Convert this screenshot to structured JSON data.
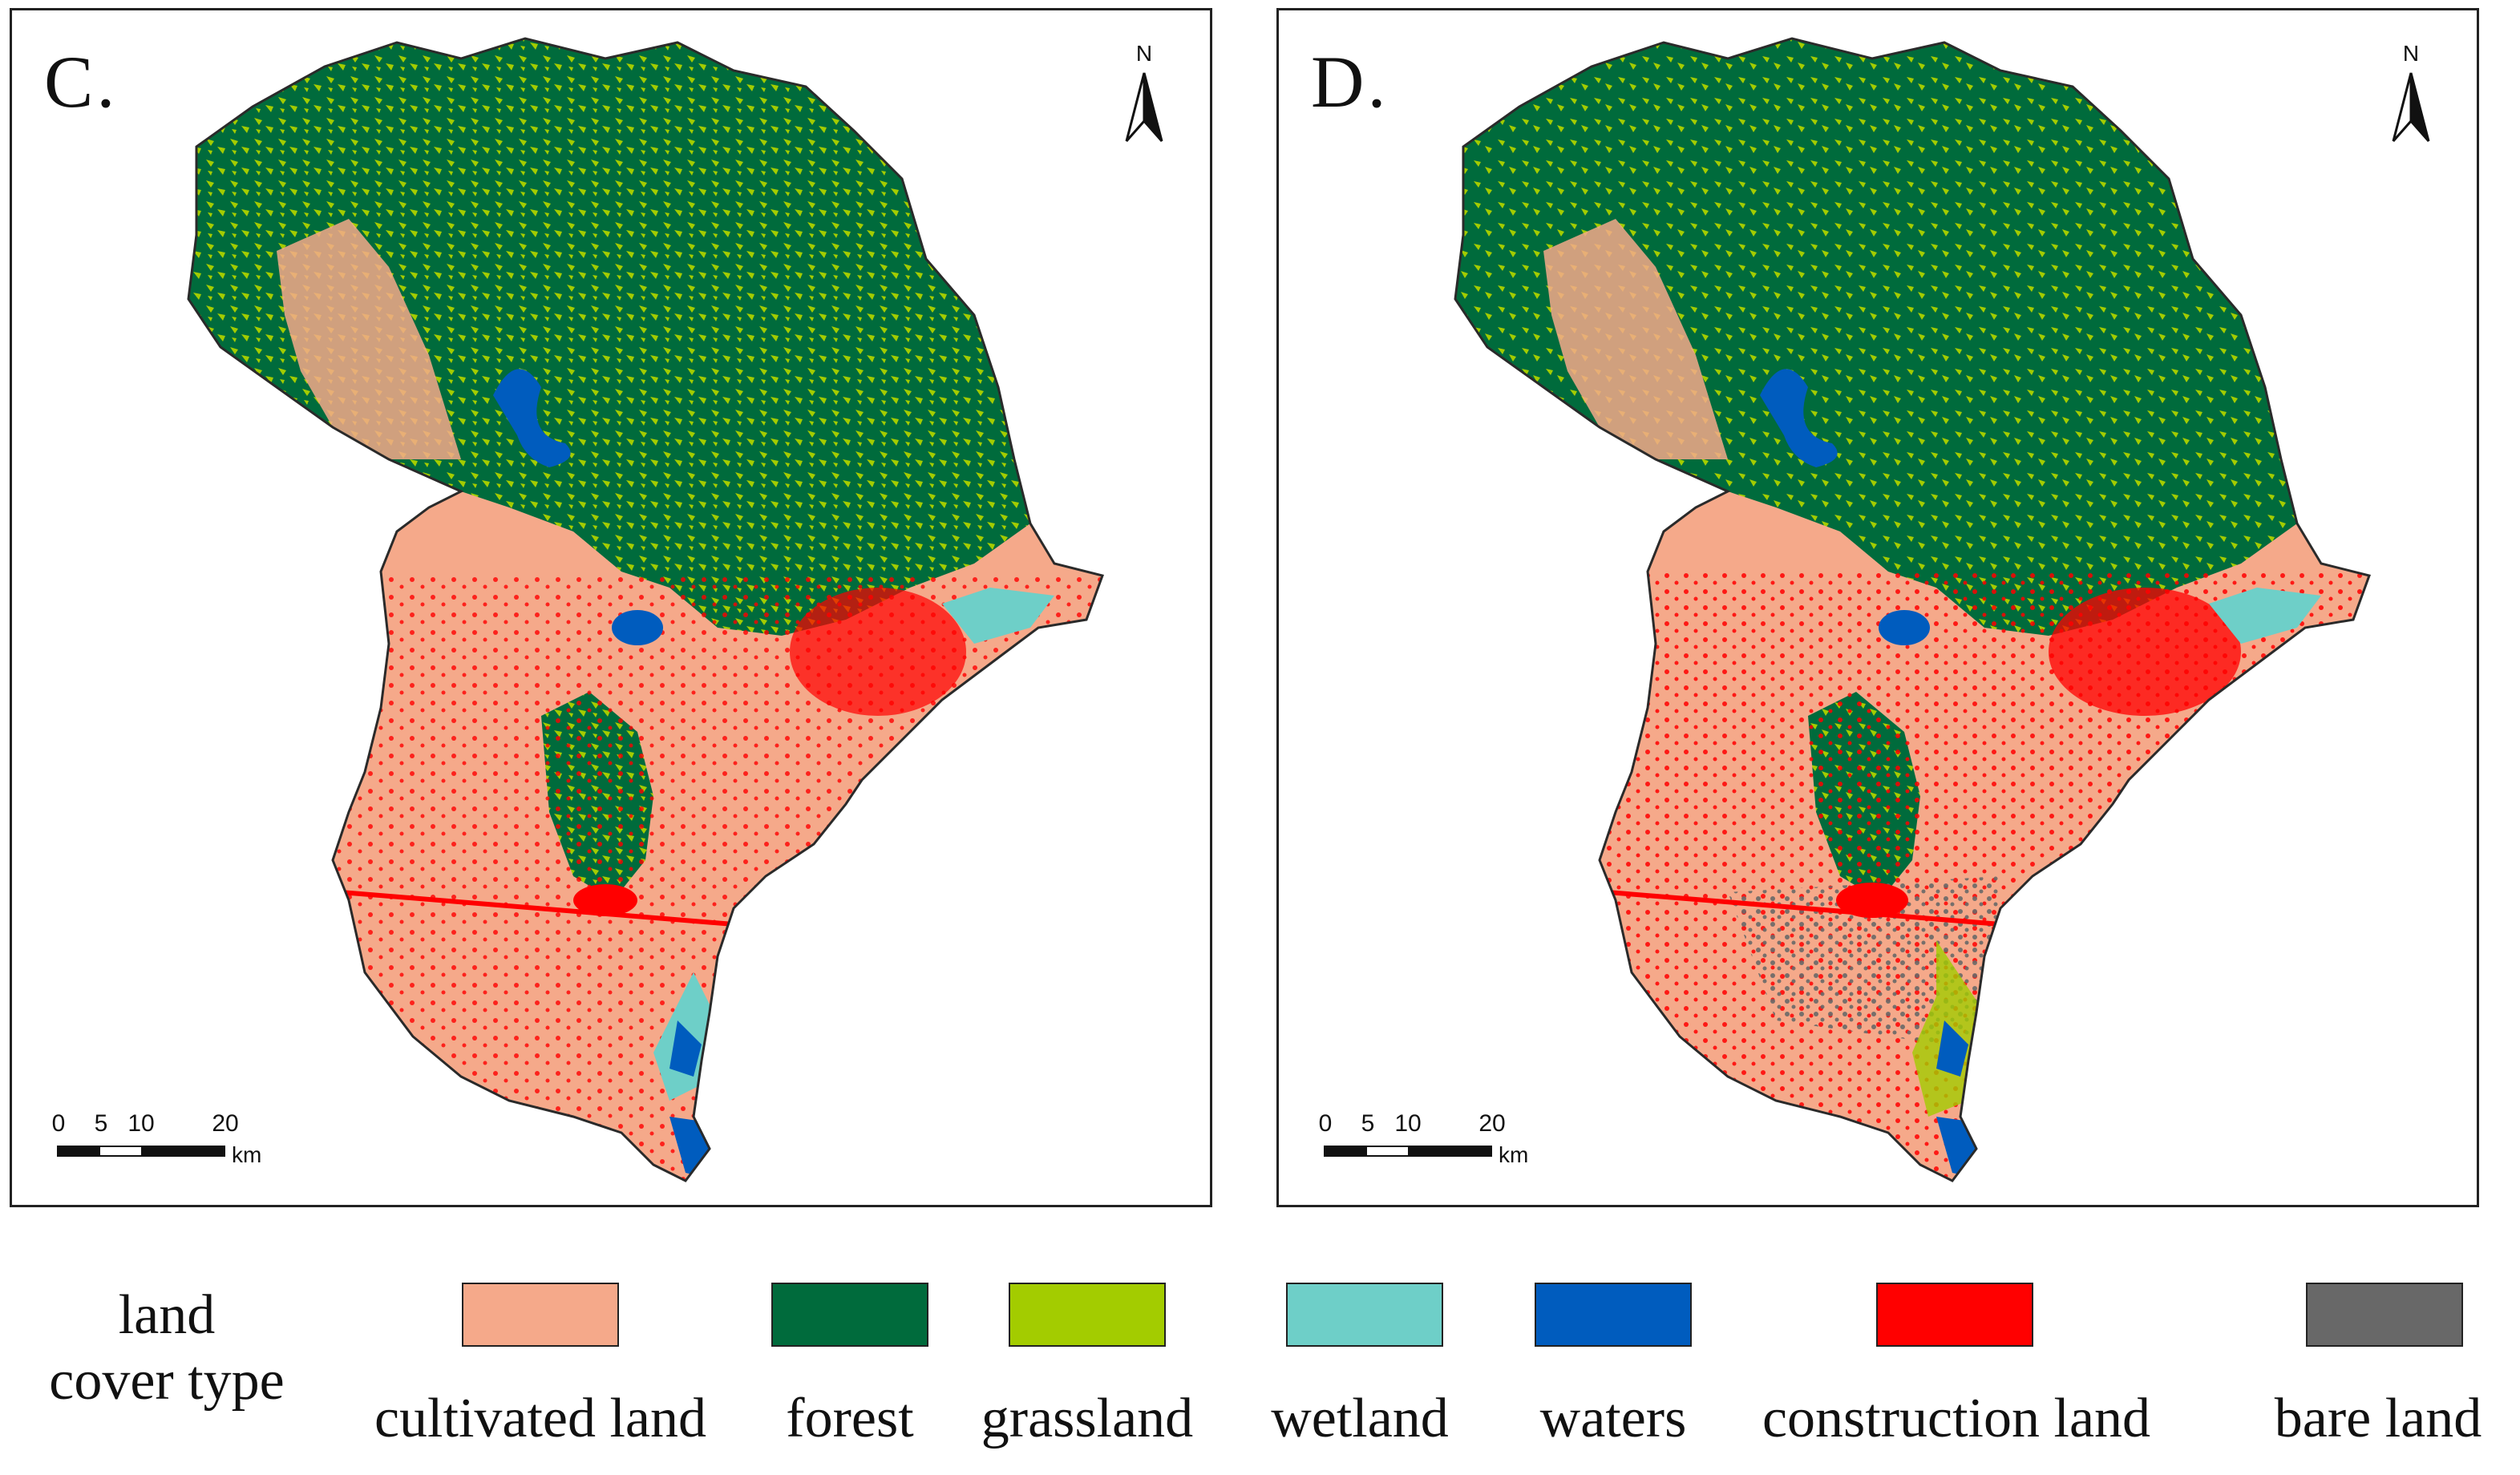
{
  "panels": [
    {
      "label": "C.",
      "north": "N",
      "scale": {
        "ticks": [
          "0",
          "5",
          "10",
          "20"
        ],
        "unit": "km"
      }
    },
    {
      "label": "D.",
      "north": "N",
      "scale": {
        "ticks": [
          "0",
          "5",
          "10",
          "20"
        ],
        "unit": "km"
      }
    }
  ],
  "legend": {
    "title_line1": "land",
    "title_line2": "cover type",
    "items": [
      {
        "label": "cultivated land",
        "color": "#F5A98A"
      },
      {
        "label": "forest",
        "color": "#006B3C"
      },
      {
        "label": "grassland",
        "color": "#A3CC00"
      },
      {
        "label": "wetland",
        "color": "#6ECFC8"
      },
      {
        "label": "waters",
        "color": "#005CBE"
      },
      {
        "label": "construction land",
        "color": "#FF0000"
      },
      {
        "label": "bare land",
        "color": "#686868"
      }
    ]
  }
}
